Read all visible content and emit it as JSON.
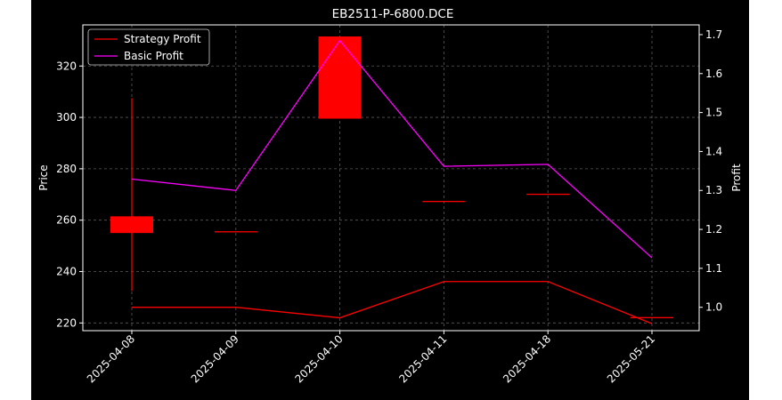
{
  "chart_data": {
    "type": "candlestick",
    "title": "EB2511-P-6800.DCE",
    "xlabel": "",
    "ylabel": "Price",
    "ylabel_right": "Profit",
    "categories": [
      "2025-04-08",
      "2025-04-09",
      "2025-04-10",
      "2025-04-11",
      "2025-04-18",
      "2025-05-21"
    ],
    "candles": [
      {
        "date": "2025-04-08",
        "open": 255,
        "close": 261.5,
        "high": 307.5,
        "low": 232.5
      },
      {
        "date": "2025-04-09",
        "open": 255.7,
        "close": 255.7,
        "high": 255.7,
        "low": 255.7
      },
      {
        "date": "2025-04-10",
        "open": 331.5,
        "close": 299.5,
        "high": 331.5,
        "low": 299.5
      },
      {
        "date": "2025-04-11",
        "open": 267.5,
        "close": 267.5,
        "high": 267.5,
        "low": 267.5
      },
      {
        "date": "2025-04-18",
        "open": 270.3,
        "close": 270.3,
        "high": 270.3,
        "low": 270.3
      },
      {
        "date": "2025-05-21",
        "open": 222.3,
        "close": 222.3,
        "high": 222.3,
        "low": 222.3
      }
    ],
    "series": [
      {
        "name": "Strategy Profit",
        "axis": "right",
        "color": "#ff0000",
        "values": [
          1.0,
          1.0,
          0.973,
          1.066,
          1.066,
          0.958
        ]
      },
      {
        "name": "Basic Profit",
        "axis": "right",
        "color": "#ff00ff",
        "values": [
          1.329,
          1.3,
          1.685,
          1.362,
          1.367,
          1.127
        ]
      }
    ],
    "ylim": [
      217,
      336
    ],
    "yticks": [
      220,
      240,
      260,
      280,
      300,
      320
    ],
    "ylim_right": [
      0.94,
      1.725
    ],
    "yticks_right": [
      1.0,
      1.1,
      1.2,
      1.3,
      1.4,
      1.5,
      1.6,
      1.7
    ],
    "grid": true,
    "legend_position": "top-left",
    "colors": {
      "background": "#000000",
      "axes": "#ffffff",
      "grid": "#5a5a5a",
      "candle": "#ff0000"
    }
  }
}
